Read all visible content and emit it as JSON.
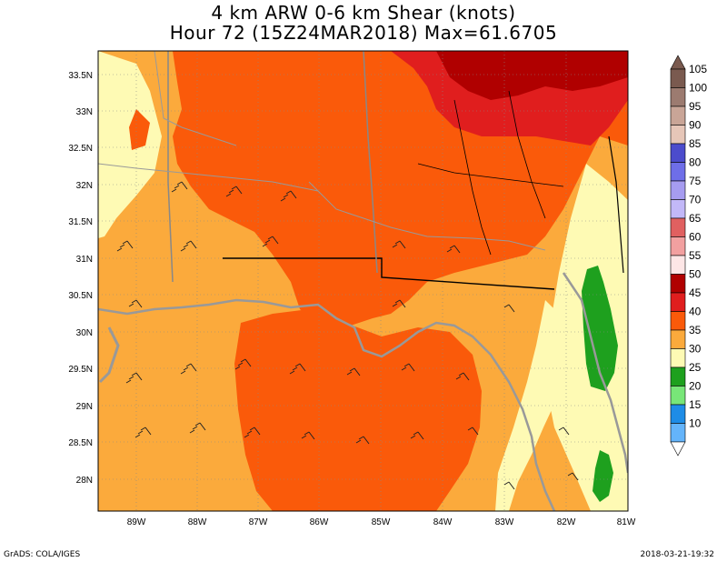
{
  "title": {
    "line1": "4 km ARW 0-6 km Shear (knots)",
    "line2": "Hour 72 (15Z24MAR2018) Max=61.6705"
  },
  "map": {
    "variable": "0-6 km Shear",
    "units": "knots",
    "lat_labels": [
      "33.5N",
      "33N",
      "32.5N",
      "32N",
      "31.5N",
      "31N",
      "30.5N",
      "30N",
      "29.5N",
      "29N",
      "28.5N",
      "28N"
    ],
    "lon_labels": [
      "89W",
      "88W",
      "87W",
      "86W",
      "85W",
      "84W",
      "83W",
      "82W",
      "81W"
    ],
    "lat_range": [
      27.6,
      33.9
    ],
    "lon_range": [
      -89.6,
      -81.0
    ]
  },
  "colorbar": {
    "levels": [
      "105",
      "100",
      "95",
      "90",
      "85",
      "80",
      "75",
      "70",
      "65",
      "60",
      "55",
      "50",
      "45",
      "40",
      "35",
      "30",
      "25",
      "20",
      "15",
      "10"
    ],
    "colors": [
      "#7a5a4f",
      "#9c7b70",
      "#c9a597",
      "#e6c6b8",
      "#4c4ccc",
      "#6e6ee8",
      "#a69cf0",
      "#c2b8f8",
      "#e06060",
      "#f2a0a0",
      "#fde6e6",
      "#b00000",
      "#e01e1e",
      "#fa5a0a",
      "#fbaa3c",
      "#fefab4",
      "#1ea01e",
      "#78e678",
      "#1e8ce6",
      "#64b4fa"
    ]
  },
  "footer": {
    "left": "GrADS: COLA/IGES",
    "right": "2018-03-21-19:32"
  }
}
